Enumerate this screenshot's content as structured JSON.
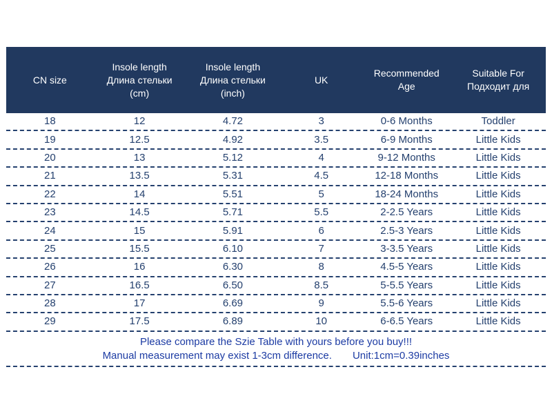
{
  "chart_data": {
    "type": "table",
    "columns": [
      {
        "id": "cn-size",
        "header_lines": [
          "CN size"
        ]
      },
      {
        "id": "insole-length-cm",
        "header_lines": [
          "Insole length",
          "Длина стельки",
          "(cm)"
        ]
      },
      {
        "id": "insole-length-inch",
        "header_lines": [
          "Insole length",
          "Длина стельки",
          "(inch)"
        ]
      },
      {
        "id": "uk-size",
        "header_lines": [
          "UK"
        ]
      },
      {
        "id": "recommended-age",
        "header_lines": [
          "Recommended",
          "Age"
        ]
      },
      {
        "id": "suitable-for",
        "header_lines": [
          "Suitable For",
          "Подходит для"
        ]
      }
    ],
    "rows": [
      [
        "18",
        "12",
        "4.72",
        "3",
        "0-6 Months",
        "Toddler"
      ],
      [
        "19",
        "12.5",
        "4.92",
        "3.5",
        "6-9 Months",
        "Little Kids"
      ],
      [
        "20",
        "13",
        "5.12",
        "4",
        "9-12 Months",
        "Little Kids"
      ],
      [
        "21",
        "13.5",
        "5.31",
        "4.5",
        "12-18 Months",
        "Little Kids"
      ],
      [
        "22",
        "14",
        "5.51",
        "5",
        "18-24 Months",
        "Little Kids"
      ],
      [
        "23",
        "14.5",
        "5.71",
        "5.5",
        "2-2.5 Years",
        "Little Kids"
      ],
      [
        "24",
        "15",
        "5.91",
        "6",
        "2.5-3 Years",
        "Little Kids"
      ],
      [
        "25",
        "15.5",
        "6.10",
        "7",
        "3-3.5 Years",
        "Little Kids"
      ],
      [
        "26",
        "16",
        "6.30",
        "8",
        "4.5-5 Years",
        "Little Kids"
      ],
      [
        "27",
        "16.5",
        "6.50",
        "8.5",
        "5-5.5 Years",
        "Little Kids"
      ],
      [
        "28",
        "17",
        "6.69",
        "9",
        "5.5-6 Years",
        "Little Kids"
      ],
      [
        "29",
        "17.5",
        "6.89",
        "10",
        "6-6.5 Years",
        "Little Kids"
      ]
    ],
    "title": "",
    "notes": [
      "Please compare the Szie Table with yours before you buy!!!",
      "Manual measurement may exist 1-3cm difference. Unit:1cm=0.39inches"
    ]
  },
  "footer": {
    "line1": "Please compare the Szie Table with yours before you buy!!!",
    "line2_left": "Manual measurement may exist 1-3cm difference.",
    "line2_right": "Unit:1cm=0.39inches"
  },
  "colors": {
    "page_bg": "#ffffff",
    "header_bg": "#21395f",
    "header_text": "#ffffff",
    "body_text": "#24406e",
    "divider": "#24406e",
    "footer_text": "#1c3ba3"
  }
}
